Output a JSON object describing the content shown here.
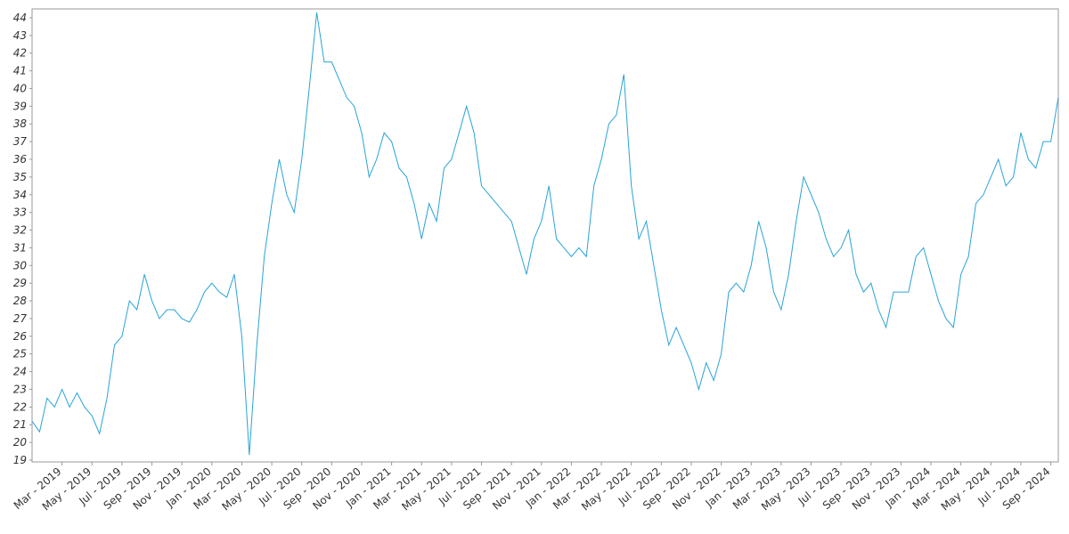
{
  "chart_data": {
    "type": "line",
    "categories": [
      null,
      null,
      null,
      null,
      "Mar - 2019",
      null,
      null,
      null,
      "May - 2019",
      null,
      null,
      null,
      "Jul - 2019",
      null,
      null,
      null,
      "Sep - 2019",
      null,
      null,
      null,
      "Nov - 2019",
      null,
      null,
      null,
      "Jan - 2020",
      null,
      null,
      null,
      "Mar - 2020",
      null,
      null,
      null,
      "May - 2020",
      null,
      null,
      null,
      "Jul - 2020",
      null,
      null,
      null,
      "Sep - 2020",
      null,
      null,
      null,
      "Nov - 2020",
      null,
      null,
      null,
      "Jan - 2021",
      null,
      null,
      null,
      "Mar - 2021",
      null,
      null,
      null,
      "May - 2021",
      null,
      null,
      null,
      "Jul - 2021",
      null,
      null,
      null,
      "Sep - 2021",
      null,
      null,
      null,
      "Nov - 2021",
      null,
      null,
      null,
      "Jan - 2022",
      null,
      null,
      null,
      "Mar - 2022",
      null,
      null,
      null,
      "May - 2022",
      null,
      null,
      null,
      "Jul - 2022",
      null,
      null,
      null,
      "Sep - 2022",
      null,
      null,
      null,
      "Nov - 2022",
      null,
      null,
      null,
      "Jan - 2023",
      null,
      null,
      null,
      "Mar - 2023",
      null,
      null,
      null,
      "May - 2023",
      null,
      null,
      null,
      "Jul - 2023",
      null,
      null,
      null,
      "Sep - 2023",
      null,
      null,
      null,
      "Nov - 2023",
      null,
      null,
      null,
      "Jan - 2024",
      null,
      null,
      null,
      "Mar - 2024",
      null,
      null,
      null,
      "May - 2024",
      null,
      null,
      null,
      "Jul - 2024",
      null,
      null,
      null,
      "Sep - 2024",
      null
    ],
    "values": [
      21.2,
      20.6,
      22.5,
      22.0,
      23.0,
      22.0,
      22.8,
      22.0,
      21.5,
      20.5,
      22.5,
      25.5,
      26.0,
      28.0,
      27.5,
      29.5,
      28.0,
      27.0,
      27.5,
      27.5,
      27.0,
      26.8,
      27.5,
      28.5,
      29.0,
      28.5,
      28.2,
      29.5,
      26.0,
      19.3,
      25.5,
      30.5,
      33.5,
      36.0,
      34.0,
      33.0,
      36.0,
      40.0,
      44.3,
      41.5,
      41.5,
      40.5,
      39.5,
      39.0,
      37.5,
      35.0,
      36.0,
      37.5,
      37.0,
      35.5,
      35.0,
      33.5,
      31.5,
      33.5,
      32.5,
      35.5,
      36.0,
      37.5,
      39.0,
      37.5,
      34.5,
      34.0,
      33.5,
      33.0,
      32.5,
      31.0,
      29.5,
      31.5,
      32.5,
      34.5,
      31.5,
      31.0,
      30.5,
      31.0,
      30.5,
      34.5,
      36.0,
      38.0,
      38.5,
      40.8,
      34.5,
      31.5,
      32.5,
      30.0,
      27.5,
      25.5,
      26.5,
      25.5,
      24.5,
      23.0,
      24.5,
      23.5,
      25.0,
      28.5,
      29.0,
      28.5,
      30.0,
      32.5,
      31.0,
      28.5,
      27.5,
      29.5,
      32.5,
      35.0,
      34.0,
      33.0,
      31.5,
      30.5,
      31.0,
      32.0,
      29.5,
      28.5,
      29.0,
      27.5,
      26.5,
      28.5,
      28.5,
      28.5,
      30.5,
      31.0,
      29.5,
      28.0,
      27.0,
      26.5,
      29.5,
      30.5,
      33.5,
      34.0,
      35.0,
      36.0,
      34.5,
      35.0,
      37.5,
      36.0,
      35.5,
      37.0,
      37.0,
      39.5
    ],
    "color": "#29a3d6",
    "ylim": [
      18.9,
      44.5
    ],
    "yticks": [
      19,
      20,
      21,
      22,
      23,
      24,
      25,
      26,
      27,
      28,
      29,
      30,
      31,
      32,
      33,
      34,
      35,
      36,
      37,
      38,
      39,
      40,
      41,
      42,
      43,
      44
    ]
  }
}
